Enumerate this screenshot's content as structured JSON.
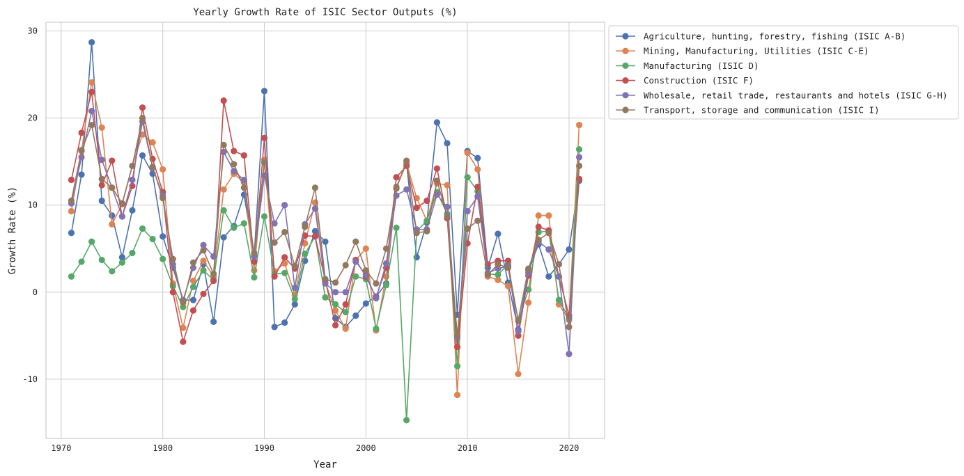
{
  "chart_data": {
    "type": "line",
    "title": "Yearly Growth Rate of ISIC Sector Outputs (%)",
    "xlabel": "Year",
    "ylabel": "Growth Rate (%)",
    "xlim": [
      1968.5,
      2023.5
    ],
    "ylim": [
      -16.8,
      31
    ],
    "xticks": [
      1970,
      1980,
      1990,
      2000,
      2010,
      2020
    ],
    "yticks": [
      -10,
      0,
      10,
      20,
      30
    ],
    "grid": true,
    "legend_position": "outside-top-right",
    "x": [
      1971,
      1972,
      1973,
      1974,
      1975,
      1976,
      1977,
      1978,
      1979,
      1980,
      1981,
      1982,
      1983,
      1984,
      1985,
      1986,
      1987,
      1988,
      1989,
      1990,
      1991,
      1992,
      1993,
      1994,
      1995,
      1996,
      1997,
      1998,
      1999,
      2000,
      2001,
      2002,
      2003,
      2004,
      2005,
      2006,
      2007,
      2008,
      2009,
      2010,
      2011,
      2012,
      2013,
      2014,
      2015,
      2016,
      2017,
      2018,
      2019,
      2020,
      2021
    ],
    "series": [
      {
        "name": "Agriculture, hunting, forestry, fishing (ISIC A-B)",
        "color": "#4C72B0",
        "values": [
          6.8,
          13.5,
          28.7,
          10.5,
          8.8,
          4.0,
          9.4,
          15.7,
          13.6,
          6.4,
          2.8,
          -0.9,
          -0.9,
          3.2,
          -3.4,
          6.3,
          7.6,
          11.2,
          4.2,
          23.1,
          -4.0,
          -3.5,
          -1.4,
          3.6,
          7.0,
          5.8,
          -3.0,
          -4.0,
          -2.7,
          -1.3,
          -0.5,
          1.0,
          12.1,
          14.8,
          4.0,
          8.0,
          19.5,
          17.1,
          -2.6,
          16.2,
          15.4,
          2.8,
          6.7,
          1.1,
          -4.3,
          2.5,
          5.5,
          1.8,
          3.2,
          4.9,
          12.8
        ]
      },
      {
        "name": "Mining, Manufacturing, Utilities (ISIC C-E)",
        "color": "#DD8452",
        "values": [
          9.3,
          16.2,
          24.1,
          18.9,
          7.8,
          10.1,
          14.5,
          18.1,
          17.2,
          14.1,
          1.0,
          -4.1,
          1.3,
          3.6,
          1.8,
          11.8,
          13.6,
          12.6,
          2.5,
          15.2,
          2.4,
          3.3,
          -0.3,
          5.6,
          10.3,
          1.1,
          -2.1,
          -4.2,
          3.7,
          5.0,
          -4.4,
          1.8,
          12.0,
          14.8,
          10.8,
          8.2,
          12.5,
          12.3,
          -11.8,
          16.0,
          14.1,
          1.8,
          1.4,
          0.7,
          -9.4,
          -1.2,
          8.8,
          8.8,
          -1.4,
          -3.2,
          19.2
        ]
      },
      {
        "name": "Manufacturing (ISIC D)",
        "color": "#55A868",
        "values": [
          1.8,
          3.5,
          5.8,
          3.7,
          2.4,
          3.4,
          4.5,
          7.3,
          6.1,
          3.8,
          0.7,
          -1.7,
          0.6,
          2.5,
          1.4,
          9.4,
          7.4,
          7.9,
          1.7,
          8.7,
          2.1,
          2.2,
          -0.8,
          4.4,
          6.4,
          -0.6,
          -1.4,
          -2.3,
          1.8,
          1.5,
          -4.2,
          0.8,
          7.4,
          -14.7,
          7.0,
          8.2,
          11.5,
          9.0,
          -8.5,
          13.2,
          11.6,
          2.1,
          2.0,
          3.2,
          -3.3,
          0.3,
          6.9,
          7.0,
          -0.9,
          -3.0,
          16.4
        ]
      },
      {
        "name": "Construction (ISIC F)",
        "color": "#C44E52",
        "values": [
          12.9,
          18.3,
          23.0,
          12.3,
          15.1,
          8.7,
          12.2,
          21.2,
          15.3,
          11.5,
          0.0,
          -5.7,
          -2.1,
          -0.2,
          1.3,
          22.0,
          16.2,
          15.7,
          3.5,
          17.7,
          1.8,
          4.0,
          2.7,
          6.5,
          6.4,
          1.4,
          -3.8,
          -1.4,
          3.7,
          1.8,
          -0.6,
          2.8,
          13.2,
          14.5,
          9.7,
          10.5,
          14.2,
          8.5,
          -6.3,
          5.6,
          12.1,
          3.2,
          3.6,
          3.6,
          -5.0,
          1.9,
          7.5,
          7.1,
          1.8,
          -2.7,
          13.0
        ]
      },
      {
        "name": "Wholesale, retail trade, restaurants and hotels (ISIC G-H)",
        "color": "#8172B3",
        "values": [
          10.2,
          15.5,
          20.8,
          15.2,
          12.0,
          8.7,
          12.9,
          19.6,
          14.3,
          11.1,
          3.2,
          -0.9,
          2.8,
          5.4,
          4.1,
          16.1,
          13.9,
          12.9,
          4.1,
          13.4,
          7.9,
          10.0,
          0.5,
          7.8,
          9.6,
          1.0,
          0.0,
          0.0,
          3.5,
          2.0,
          -0.7,
          3.3,
          11.1,
          11.8,
          7.2,
          7.2,
          11.2,
          9.8,
          -5.2,
          9.3,
          11.0,
          2.2,
          2.7,
          3.0,
          -4.5,
          2.2,
          5.8,
          4.9,
          1.8,
          -7.1,
          15.5
        ]
      },
      {
        "name": "Transport, storage and communication (ISIC I)",
        "color": "#937860",
        "values": [
          10.5,
          16.3,
          19.2,
          13.0,
          12.0,
          10.2,
          14.5,
          20.0,
          14.4,
          10.8,
          3.8,
          -1.2,
          3.4,
          4.8,
          2.1,
          16.9,
          14.7,
          12.0,
          4.5,
          14.9,
          5.7,
          6.9,
          3.0,
          7.5,
          12.0,
          1.5,
          1.1,
          3.1,
          5.8,
          2.5,
          1.0,
          5.0,
          11.9,
          15.1,
          6.8,
          7.0,
          12.8,
          8.7,
          -5.0,
          7.3,
          8.2,
          2.0,
          3.2,
          2.8,
          -3.2,
          2.7,
          6.0,
          6.8,
          3.2,
          -4.0,
          14.5
        ]
      }
    ]
  }
}
